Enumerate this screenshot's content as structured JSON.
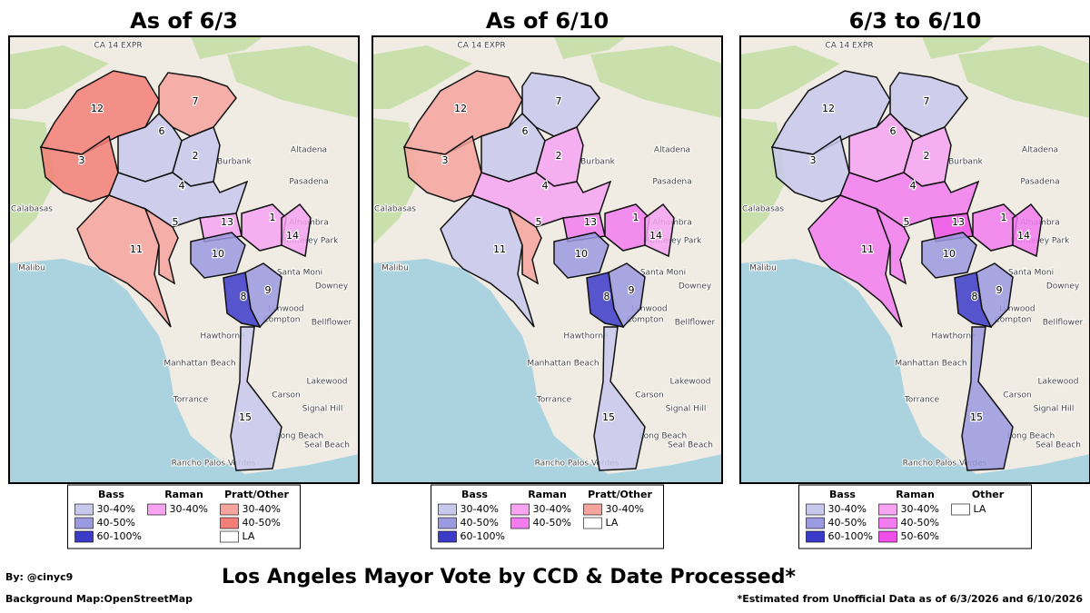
{
  "panels": [
    {
      "title": "As of 6/3",
      "districts": [
        {
          "label": "12",
          "color": "#f47f78"
        },
        {
          "label": "3",
          "color": "#f47f78"
        },
        {
          "label": "7",
          "color": "#f7a39e"
        },
        {
          "label": "6",
          "color": "#c8c8ec"
        },
        {
          "label": "2",
          "color": "#c8c8ec"
        },
        {
          "label": "4",
          "color": "#c8c8ec"
        },
        {
          "label": "11",
          "color": "#f7a39e"
        },
        {
          "label": "5",
          "color": "#f7a39e"
        },
        {
          "label": "13",
          "color": "#f6a3f1"
        },
        {
          "label": "1",
          "color": "#f6a3f1"
        },
        {
          "label": "14",
          "color": "#f6a3f1"
        },
        {
          "label": "10",
          "color": "#9a9ae0"
        },
        {
          "label": "9",
          "color": "#9a9ae0"
        },
        {
          "label": "8",
          "color": "#3b3bc9"
        },
        {
          "label": "15",
          "color": "#c8c8ec"
        }
      ],
      "legend": [
        {
          "name": "Bass",
          "items": [
            {
              "label": "30-40%",
              "color": "#c8c8ec"
            },
            {
              "label": "40-50%",
              "color": "#9a9ae0"
            },
            {
              "label": "60-100%",
              "color": "#3b3bc9"
            }
          ]
        },
        {
          "name": "Raman",
          "items": [
            {
              "label": "30-40%",
              "color": "#f6a3f1"
            }
          ]
        },
        {
          "name": "Pratt/Other",
          "items": [
            {
              "label": "30-40%",
              "color": "#f7a39e"
            },
            {
              "label": "40-50%",
              "color": "#f47f78"
            },
            {
              "label": "LA",
              "color": "#ffffff"
            }
          ]
        }
      ]
    },
    {
      "title": "As of 6/10",
      "districts": [
        {
          "label": "12",
          "color": "#f7a39e"
        },
        {
          "label": "3",
          "color": "#f7a39e"
        },
        {
          "label": "7",
          "color": "#c8c8ec"
        },
        {
          "label": "6",
          "color": "#c8c8ec"
        },
        {
          "label": "2",
          "color": "#f6a3f1"
        },
        {
          "label": "4",
          "color": "#f6a3f1"
        },
        {
          "label": "11",
          "color": "#c8c8ec"
        },
        {
          "label": "5",
          "color": "#f7a39e"
        },
        {
          "label": "13",
          "color": "#f27cf0"
        },
        {
          "label": "1",
          "color": "#f27cf0"
        },
        {
          "label": "14",
          "color": "#f6a3f1"
        },
        {
          "label": "10",
          "color": "#9a9ae0"
        },
        {
          "label": "9",
          "color": "#9a9ae0"
        },
        {
          "label": "8",
          "color": "#3b3bc9"
        },
        {
          "label": "15",
          "color": "#c8c8ec"
        }
      ],
      "legend": [
        {
          "name": "Bass",
          "items": [
            {
              "label": "30-40%",
              "color": "#c8c8ec"
            },
            {
              "label": "40-50%",
              "color": "#9a9ae0"
            },
            {
              "label": "60-100%",
              "color": "#3b3bc9"
            }
          ]
        },
        {
          "name": "Raman",
          "items": [
            {
              "label": "30-40%",
              "color": "#f6a3f1"
            },
            {
              "label": "40-50%",
              "color": "#f27cf0"
            }
          ]
        },
        {
          "name": "Pratt/Other",
          "items": [
            {
              "label": "30-40%",
              "color": "#f7a39e"
            },
            {
              "label": "LA",
              "color": "#ffffff"
            }
          ]
        }
      ]
    },
    {
      "title": "6/3 to 6/10",
      "districts": [
        {
          "label": "12",
          "color": "#c8c8ec"
        },
        {
          "label": "3",
          "color": "#c8c8ec"
        },
        {
          "label": "7",
          "color": "#c8c8ec"
        },
        {
          "label": "6",
          "color": "#f6a3f1"
        },
        {
          "label": "2",
          "color": "#f6a3f1"
        },
        {
          "label": "4",
          "color": "#f27cf0"
        },
        {
          "label": "11",
          "color": "#f27cf0"
        },
        {
          "label": "5",
          "color": "#f27cf0"
        },
        {
          "label": "13",
          "color": "#ee4fe9"
        },
        {
          "label": "1",
          "color": "#f27cf0"
        },
        {
          "label": "14",
          "color": "#f27cf0"
        },
        {
          "label": "10",
          "color": "#9a9ae0"
        },
        {
          "label": "9",
          "color": "#9a9ae0"
        },
        {
          "label": "8",
          "color": "#3b3bc9"
        },
        {
          "label": "15",
          "color": "#9a9ae0"
        }
      ],
      "legend": [
        {
          "name": "Bass",
          "items": [
            {
              "label": "30-40%",
              "color": "#c8c8ec"
            },
            {
              "label": "40-50%",
              "color": "#9a9ae0"
            },
            {
              "label": "60-100%",
              "color": "#3b3bc9"
            }
          ]
        },
        {
          "name": "Raman",
          "items": [
            {
              "label": "30-40%",
              "color": "#f6a3f1"
            },
            {
              "label": "40-50%",
              "color": "#f27cf0"
            },
            {
              "label": "50-60%",
              "color": "#ee4fe9"
            }
          ]
        },
        {
          "name": "Other",
          "items": [
            {
              "label": "LA",
              "color": "#ffffff"
            }
          ]
        }
      ]
    }
  ],
  "basemap_labels": [
    "CA 14 EXPR",
    "Altadena",
    "Burbank",
    "Pasadena",
    "Calabasas",
    "Malibu",
    "Santa Moni",
    "Alhambra",
    "Monterey Park",
    "Downey",
    "Compton",
    "Hawthorne",
    "Manhattan Beach",
    "Lynwood",
    "Bellflower",
    "Lakewood",
    "Torrance",
    "Carson",
    "Signal Hill",
    "Long Beach",
    "Rancho Palos Verdes",
    "Seal Beach"
  ],
  "footer": {
    "title": "Los Angeles Mayor Vote by CCD & Date Processed*",
    "credit": "By: @cinyc9",
    "source": "Background Map:OpenStreetMap",
    "note": "*Estimated from Unofficial Data as of 6/3/2026 and 6/10/2026"
  }
}
